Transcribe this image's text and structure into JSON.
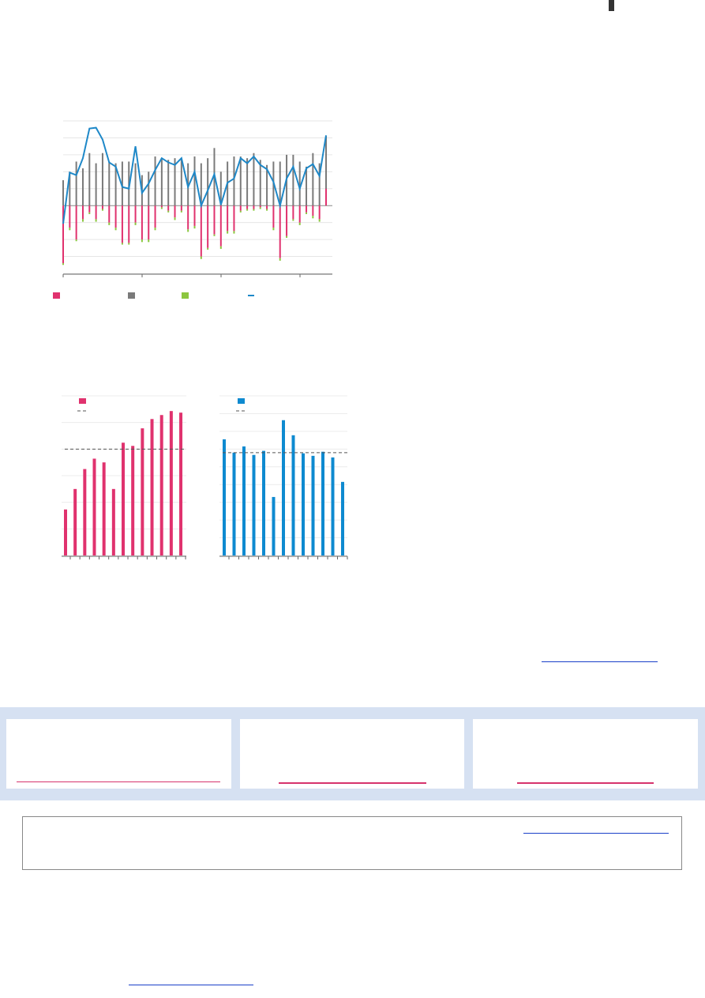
{
  "chart_data": [
    {
      "type": "stacked-bar-line",
      "ylim": [
        -4,
        5
      ],
      "yticks": [
        -4,
        -3,
        -2,
        -1,
        0,
        1,
        2,
        3,
        4,
        5
      ],
      "grid": true,
      "series": [
        {
          "color": "#e0326e",
          "values": [
            -3.4,
            -1.3,
            -2.0,
            -0.8,
            -0.4,
            -0.8,
            -0.2,
            -1.0,
            -1.3,
            -2.2,
            -2.2,
            -1.0,
            -2.0,
            -2.0,
            -1.3,
            -0.1,
            -0.3,
            -0.7,
            -0.3,
            -1.4,
            -1.2,
            -3.0,
            -2.5,
            -1.7,
            -2.4,
            -1.5,
            -1.5,
            -0.3,
            -0.2,
            -0.2,
            -0.1,
            -0.2,
            -1.3,
            -3.1,
            -1.8,
            -0.8,
            -1.0,
            -0.4,
            -0.6,
            -0.8,
            1.0
          ]
        },
        {
          "color": "#7a7a7a",
          "values": [
            1.5,
            2.0,
            2.6,
            2.2,
            3.1,
            2.5,
            3.1,
            2.6,
            2.5,
            2.6,
            2.6,
            2.5,
            1.8,
            2.0,
            2.9,
            2.8,
            2.7,
            2.8,
            2.8,
            2.5,
            2.9,
            2.5,
            2.8,
            3.4,
            2.0,
            2.6,
            2.9,
            2.9,
            2.8,
            3.1,
            2.7,
            2.4,
            2.6,
            2.6,
            3.0,
            3.0,
            2.6,
            2.3,
            3.1,
            2.5,
            4.1
          ]
        },
        {
          "color": "#8cc63f",
          "values": [
            -0.1,
            -0.15,
            -0.1,
            -0.15,
            -0.1,
            -0.15,
            -0.1,
            -0.15,
            -0.15,
            -0.1,
            -0.1,
            -0.15,
            -0.15,
            -0.15,
            -0.15,
            -0.1,
            -0.1,
            -0.15,
            -0.1,
            -0.15,
            -0.15,
            -0.15,
            -0.1,
            -0.1,
            -0.15,
            -0.15,
            -0.15,
            -0.1,
            -0.1,
            -0.1,
            -0.1,
            -0.1,
            -0.15,
            -0.15,
            -0.1,
            -0.1,
            -0.15,
            -0.1,
            -0.15,
            -0.15,
            0
          ]
        },
        {
          "color": "#1e88c8",
          "kind": "line",
          "values": [
            -1.07,
            1.95,
            1.8,
            2.8,
            4.55,
            4.6,
            3.9,
            2.55,
            2.3,
            1.1,
            1.0,
            3.5,
            0.75,
            1.3,
            2.1,
            2.8,
            2.55,
            2.4,
            2.8,
            1.1,
            2.0,
            0,
            0.9,
            1.85,
            0.05,
            1.35,
            1.6,
            2.8,
            2.5,
            2.9,
            2.4,
            2.15,
            1.4,
            0,
            1.6,
            2.3,
            1.0,
            2.2,
            2.45,
            1.75,
            4.15
          ]
        }
      ]
    },
    {
      "type": "bar",
      "color": "#e0326e",
      "ylim": [
        0,
        6
      ],
      "yticks": [
        0,
        1,
        2,
        3,
        4,
        5,
        6
      ],
      "grid": true,
      "reference": 4.0,
      "values": [
        1.73,
        2.5,
        3.25,
        3.64,
        3.5,
        2.5,
        4.24,
        4.12,
        4.78,
        5.13,
        5.28,
        5.43,
        5.37
      ]
    },
    {
      "type": "bar",
      "color": "#0e8ad0",
      "ylim": [
        0,
        9
      ],
      "yticks": [
        0,
        1,
        2,
        3,
        4,
        5,
        6,
        7,
        8,
        9
      ],
      "grid": true,
      "reference": 5.8,
      "values": [
        6.55,
        5.8,
        6.15,
        5.67,
        5.9,
        3.3,
        7.63,
        6.78,
        5.76,
        5.62,
        5.85,
        5.53,
        4.15
      ]
    }
  ]
}
